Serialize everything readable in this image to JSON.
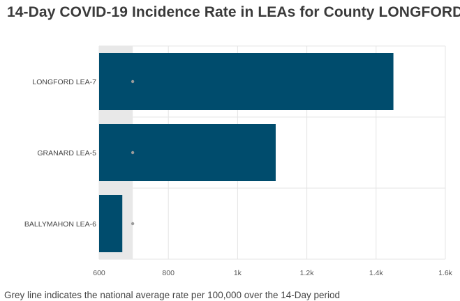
{
  "chart_data": {
    "type": "bar",
    "orientation": "horizontal",
    "title": "14-Day COVID-19 Incidence Rate in LEAs for County LONGFORD",
    "categories": [
      "LONGFORD LEA-7",
      "GRANARD LEA-5",
      "BALLYMAHON LEA-6"
    ],
    "values": [
      1450,
      1110,
      667
    ],
    "reference": {
      "values": [
        697,
        697,
        697
      ]
    },
    "xlim": [
      600,
      1600
    ],
    "xticks": [
      600,
      800,
      1000,
      1200,
      1400,
      1600
    ],
    "xtick_labels": [
      "600",
      "800",
      "1k",
      "1.2k",
      "1.4k",
      "1.6k"
    ],
    "grid": true,
    "colors": {
      "bar": "#004c6d",
      "reference_band": "#e8e8e8",
      "reference_marker": "#9a9a9a",
      "grid": "#e4e4e4"
    }
  },
  "footnote": "Grey line indicates the national average rate per 100,000 over the 14-Day period"
}
